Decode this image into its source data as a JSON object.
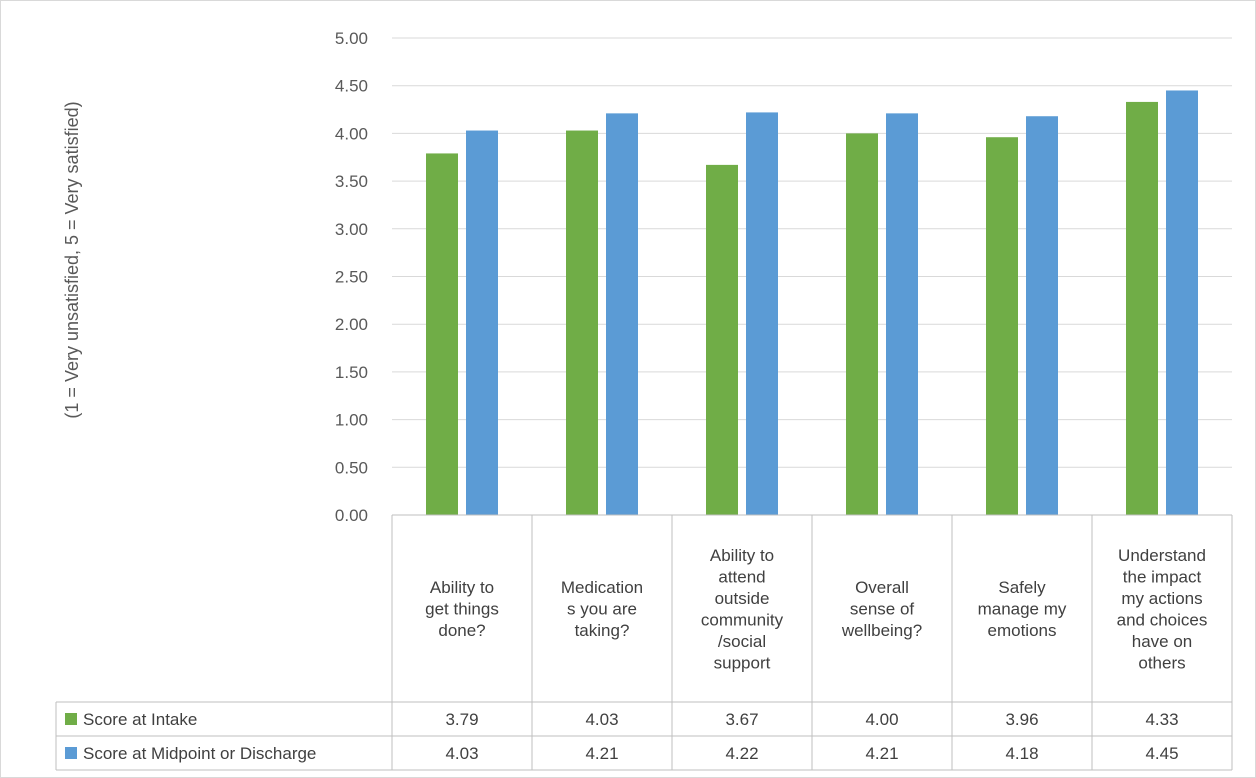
{
  "chart_data": {
    "type": "bar",
    "title": "",
    "ylabel": "(1 = Very unsatisfied, 5 = Very satisfied)",
    "xlabel": "",
    "ylim": [
      0,
      5
    ],
    "ytick_step": 0.5,
    "ytick_labels": [
      "0.00",
      "0.50",
      "1.00",
      "1.50",
      "2.00",
      "2.50",
      "3.00",
      "3.50",
      "4.00",
      "4.50",
      "5.00"
    ],
    "grid": true,
    "legend": "data-table",
    "categories": [
      "Ability to get things done?",
      "Medications you are taking?",
      "Ability to attend outside community /social support",
      "Overall sense of wellbeing?",
      "Safely manage my emotions",
      "Understand the impact my actions and choices have on others"
    ],
    "category_lines": [
      [
        "Ability to",
        "get things",
        "done?"
      ],
      [
        "Medication",
        "s you are",
        "taking?"
      ],
      [
        "Ability to",
        "attend",
        "outside",
        "community",
        "/social",
        "support"
      ],
      [
        "Overall",
        "sense of",
        "wellbeing?"
      ],
      [
        "Safely",
        "manage my",
        "emotions"
      ],
      [
        "Understand",
        "the impact",
        "my actions",
        "and choices",
        "have on",
        "others"
      ]
    ],
    "series": [
      {
        "name": "Score at Intake",
        "color": "#70ad47",
        "values": [
          3.79,
          4.03,
          3.67,
          4.0,
          3.96,
          4.33
        ],
        "labels": [
          "3.79",
          "4.03",
          "3.67",
          "4.00",
          "3.96",
          "4.33"
        ]
      },
      {
        "name": "Score at Midpoint or Discharge",
        "color": "#5b9bd5",
        "values": [
          4.03,
          4.21,
          4.22,
          4.21,
          4.18,
          4.45
        ],
        "labels": [
          "4.03",
          "4.21",
          "4.22",
          "4.21",
          "4.18",
          "4.45"
        ]
      }
    ]
  }
}
